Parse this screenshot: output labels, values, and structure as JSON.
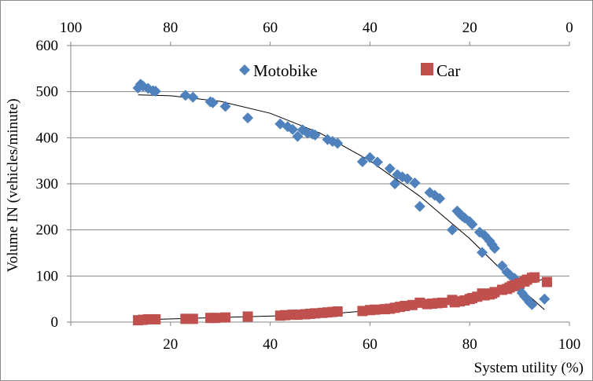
{
  "chart_data": {
    "type": "scatter",
    "xlabel": "System utility (%)",
    "ylabel": "Volume IN (vehicles/minute)",
    "xlim": [
      0,
      100
    ],
    "ylim": [
      0,
      600
    ],
    "x_ticks": [
      "20",
      "40",
      "60",
      "80",
      "100"
    ],
    "y_ticks": [
      "0",
      "100",
      "200",
      "300",
      "400",
      "500",
      "600"
    ],
    "x2_ticks": [
      "100",
      "80",
      "60",
      "40",
      "20",
      "0"
    ],
    "grid": "horizontal",
    "legend": "top",
    "series": [
      {
        "name": "Motobike",
        "color": "#4f81bd",
        "marker": "diamond",
        "points": [
          [
            13.5,
            508
          ],
          [
            14,
            516
          ],
          [
            14.5,
            512
          ],
          [
            15.5,
            507
          ],
          [
            16.5,
            502
          ],
          [
            17,
            501
          ],
          [
            23,
            492
          ],
          [
            24.5,
            488
          ],
          [
            28,
            478
          ],
          [
            28.5,
            476
          ],
          [
            31,
            468
          ],
          [
            35.5,
            443
          ],
          [
            42,
            430
          ],
          [
            43.5,
            424
          ],
          [
            44.5,
            418
          ],
          [
            45.5,
            403
          ],
          [
            46.5,
            417
          ],
          [
            47.5,
            410
          ],
          [
            48.5,
            408
          ],
          [
            49,
            406
          ],
          [
            51.5,
            396
          ],
          [
            52.5,
            392
          ],
          [
            53.5,
            388
          ],
          [
            58.5,
            348
          ],
          [
            60,
            357
          ],
          [
            61.5,
            347
          ],
          [
            64,
            333
          ],
          [
            65,
            300
          ],
          [
            65.5,
            320
          ],
          [
            66.5,
            315
          ],
          [
            67.5,
            311
          ],
          [
            69,
            302
          ],
          [
            70,
            251
          ],
          [
            72,
            281
          ],
          [
            73,
            275
          ],
          [
            74,
            268
          ],
          [
            76.5,
            200
          ],
          [
            77.5,
            241
          ],
          [
            78,
            235
          ],
          [
            78.5,
            230
          ],
          [
            79,
            226
          ],
          [
            80,
            218
          ],
          [
            80.5,
            212
          ],
          [
            82,
            195
          ],
          [
            82.5,
            151
          ],
          [
            83,
            188
          ],
          [
            84,
            176
          ],
          [
            84.5,
            168
          ],
          [
            85,
            160
          ],
          [
            86.5,
            122
          ],
          [
            87.5,
            108
          ],
          [
            88,
            103
          ],
          [
            89,
            95
          ],
          [
            89.5,
            86
          ],
          [
            90,
            74
          ],
          [
            90.5,
            63
          ],
          [
            91,
            56
          ],
          [
            91.5,
            50
          ],
          [
            92,
            43
          ],
          [
            92.5,
            38
          ],
          [
            95,
            50
          ]
        ],
        "trend": [
          [
            13.5,
            493
          ],
          [
            20,
            491
          ],
          [
            30,
            479
          ],
          [
            40,
            453
          ],
          [
            50,
            410
          ],
          [
            60,
            350
          ],
          [
            70,
            273
          ],
          [
            80,
            181
          ],
          [
            90,
            75
          ],
          [
            95,
            27
          ]
        ]
      },
      {
        "name": "Car",
        "color": "#c0504d",
        "marker": "square",
        "points": [
          [
            13.5,
            4
          ],
          [
            14.5,
            5
          ],
          [
            15.5,
            6
          ],
          [
            16.5,
            6
          ],
          [
            17,
            6
          ],
          [
            23,
            7
          ],
          [
            24.5,
            7
          ],
          [
            28,
            9
          ],
          [
            29,
            9
          ],
          [
            31,
            10
          ],
          [
            35.5,
            12
          ],
          [
            42,
            14
          ],
          [
            43,
            15
          ],
          [
            44.5,
            16
          ],
          [
            45.5,
            16
          ],
          [
            47,
            17
          ],
          [
            48,
            18
          ],
          [
            49,
            19
          ],
          [
            50.5,
            20
          ],
          [
            51.5,
            21
          ],
          [
            52.5,
            22
          ],
          [
            53.5,
            23
          ],
          [
            58.5,
            24
          ],
          [
            60,
            26
          ],
          [
            61,
            27
          ],
          [
            63,
            28
          ],
          [
            64,
            29
          ],
          [
            65,
            31
          ],
          [
            66,
            33
          ],
          [
            67,
            35
          ],
          [
            68.5,
            37
          ],
          [
            70,
            42
          ],
          [
            71.5,
            39
          ],
          [
            72.5,
            40
          ],
          [
            73.5,
            41
          ],
          [
            74.5,
            42
          ],
          [
            76.5,
            48
          ],
          [
            77,
            43
          ],
          [
            78,
            45
          ],
          [
            79,
            47
          ],
          [
            80,
            50
          ],
          [
            80.5,
            52
          ],
          [
            81.5,
            55
          ],
          [
            82.5,
            62
          ],
          [
            83,
            58
          ],
          [
            84,
            60
          ],
          [
            84.5,
            62
          ],
          [
            85,
            65
          ],
          [
            86.5,
            70
          ],
          [
            87.5,
            72
          ],
          [
            88,
            75
          ],
          [
            88.5,
            78
          ],
          [
            89,
            80
          ],
          [
            90,
            84
          ],
          [
            91,
            88
          ],
          [
            91.5,
            92
          ],
          [
            92.5,
            96
          ],
          [
            93,
            97
          ],
          [
            95.5,
            87
          ]
        ],
        "trend": [
          [
            13.5,
            5
          ],
          [
            30,
            10
          ],
          [
            50,
            16
          ],
          [
            60,
            25
          ],
          [
            70,
            38
          ],
          [
            80,
            54
          ],
          [
            90,
            78
          ],
          [
            95,
            94
          ]
        ]
      }
    ]
  }
}
